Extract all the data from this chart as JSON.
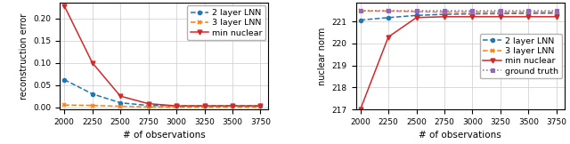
{
  "x": [
    2000,
    2250,
    2500,
    2750,
    3000,
    3250,
    3500,
    3750
  ],
  "left_2layer": [
    0.062,
    0.03,
    0.01,
    0.004,
    0.003,
    0.003,
    0.003,
    0.003
  ],
  "left_3layer": [
    0.005,
    0.004,
    0.002,
    0.001,
    0.0005,
    0.0004,
    0.0003,
    0.0003
  ],
  "left_minnuc": [
    0.228,
    0.1,
    0.025,
    0.008,
    0.003,
    0.003,
    0.003,
    0.003
  ],
  "right_2layer": [
    221.07,
    221.18,
    221.28,
    221.33,
    221.35,
    221.36,
    221.37,
    221.38
  ],
  "right_3layer": [
    221.48,
    221.48,
    221.45,
    221.43,
    221.43,
    221.43,
    221.43,
    221.43
  ],
  "right_minnuc": [
    217.0,
    220.3,
    221.18,
    221.22,
    221.22,
    221.22,
    221.22,
    221.22
  ],
  "right_ground": [
    221.5,
    221.5,
    221.5,
    221.5,
    221.5,
    221.5,
    221.5,
    221.5
  ],
  "color_2layer": "#1f77b4",
  "color_3layer": "#ff7f0e",
  "color_minnuc": "#d62728",
  "color_ground": "#9467bd",
  "left_ylabel": "reconstruction error",
  "right_ylabel": "nuclear norm",
  "xlabel": "# of observations",
  "left_ylim": [
    -0.005,
    0.235
  ],
  "right_ylim": [
    217.0,
    221.85
  ],
  "left_yticks": [
    0.0,
    0.05,
    0.1,
    0.15,
    0.2
  ],
  "right_yticks": [
    217,
    218,
    219,
    220,
    221
  ],
  "xticks": [
    2000,
    2250,
    2500,
    2750,
    3000,
    3250,
    3500,
    3750
  ],
  "left_legend_loc": "upper right",
  "right_legend_loc": "center right"
}
